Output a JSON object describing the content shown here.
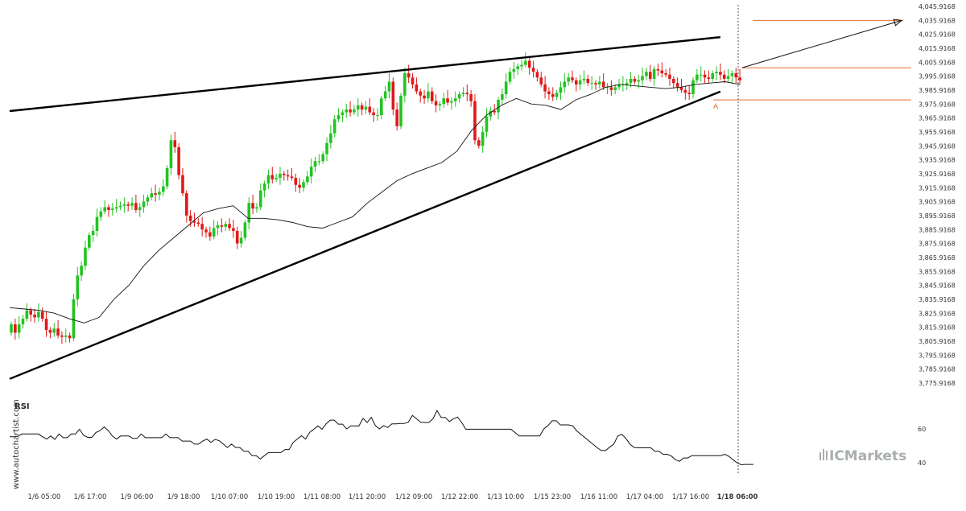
{
  "chart_data": [
    {
      "type": "candlestick",
      "title": "",
      "y_ticks": [
        "4,045.9168",
        "4,035.9168",
        "4,025.9168",
        "4,015.9168",
        "4,005.9168",
        "3,995.9168",
        "3,985.9168",
        "3,975.9168",
        "3,965.9168",
        "3,955.9168",
        "3,945.9168",
        "3,935.9168",
        "3,925.9168",
        "3,915.9168",
        "3,905.9168",
        "3,895.9168",
        "3,885.9168",
        "3,875.9168",
        "3,865.9168",
        "3,855.9168",
        "3,845.9168",
        "3,835.9168",
        "3,825.9168",
        "3,815.9168",
        "3,805.9168",
        "3,795.9168",
        "3,785.9168",
        "3,775.9168"
      ],
      "y_tick_values": [
        4045.9168,
        4035.9168,
        4025.9168,
        4015.9168,
        4005.9168,
        3995.9168,
        3985.9168,
        3975.9168,
        3965.9168,
        3955.9168,
        3945.9168,
        3935.9168,
        3925.9168,
        3915.9168,
        3905.9168,
        3895.9168,
        3885.9168,
        3875.9168,
        3865.9168,
        3855.9168,
        3845.9168,
        3835.9168,
        3825.9168,
        3815.9168,
        3805.9168,
        3795.9168,
        3785.9168,
        3775.9168
      ],
      "ylim": [
        3775.9168,
        4045.9168
      ],
      "x_ticks": [
        "1/6 05:00",
        "1/6 17:00",
        "1/9 06:00",
        "1/9 18:00",
        "1/10 07:00",
        "1/10 19:00",
        "1/11 08:00",
        "1/11 20:00",
        "1/12 09:00",
        "1/12 22:00",
        "1/13 10:00",
        "1/15 23:00",
        "1/16 11:00",
        "1/17 04:00",
        "1/17 16:00",
        "1/18 06:00"
      ],
      "x_tick_bold": "1/18 06:00",
      "up_color": "#22c322",
      "down_color": "#e01818",
      "candles_close": [
        3818,
        3812,
        3818,
        3822,
        3828,
        3825,
        3823,
        3827,
        3822,
        3814,
        3812,
        3815,
        3810,
        3809,
        3810,
        3808,
        3836,
        3853,
        3860,
        3873,
        3882,
        3885,
        3895,
        3899,
        3902,
        3900,
        3901,
        3902,
        3903,
        3904,
        3903,
        3905,
        3900,
        3902,
        3906,
        3909,
        3912,
        3911,
        3913,
        3917,
        3930,
        3950,
        3945,
        3925,
        3912,
        3896,
        3892,
        3891,
        3890,
        3886,
        3884,
        3881,
        3887,
        3889,
        3888,
        3890,
        3887,
        3885,
        3876,
        3880,
        3891,
        3905,
        3901,
        3902,
        3914,
        3919,
        3925,
        3922,
        3923,
        3926,
        3925,
        3924,
        3923,
        3918,
        3916,
        3920,
        3924,
        3931,
        3935,
        3935,
        3940,
        3948,
        3955,
        3965,
        3968,
        3970,
        3972,
        3970,
        3972,
        3975,
        3972,
        3974,
        3970,
        3968,
        3968,
        3980,
        3985,
        3992,
        3972,
        3960,
        3982,
        3998,
        3995,
        3990,
        3985,
        3982,
        3980,
        3985,
        3978,
        3975,
        3976,
        3980,
        3977,
        3978,
        3980,
        3983,
        3984,
        3983,
        3978,
        3950,
        3946,
        3956,
        3967,
        3971,
        3970,
        3979,
        3983,
        3992,
        3999,
        4001,
        4003,
        4004,
        4007,
        4002,
        3999,
        3995,
        3990,
        3985,
        3983,
        3981,
        3984,
        3988,
        3992,
        3995,
        3993,
        3990,
        3993,
        3994,
        3991,
        3991,
        3990,
        3992,
        3988,
        3988,
        3986,
        3988,
        3990,
        3990,
        3991,
        3994,
        3992,
        3993,
        3996,
        3999,
        3994,
        4001,
        4000,
        3998,
        3997,
        3994,
        3991,
        3988,
        3986,
        3984,
        3983,
        3993,
        3997,
        3997,
        3995,
        3994,
        3998,
        3999,
        3997,
        3994,
        3996,
        3998,
        3995,
        3993
      ],
      "ma_values": [
        3830,
        3829,
        3828,
        3826,
        3822,
        3819,
        3823,
        3836,
        3846,
        3860,
        3871,
        3880,
        3889,
        3898,
        3901,
        3903,
        3894,
        3894,
        3893,
        3891,
        3888,
        3887,
        3891,
        3895,
        3905,
        3913,
        3921,
        3926,
        3930,
        3934,
        3942,
        3957,
        3968,
        3975,
        3980,
        3976,
        3975,
        3972,
        3979,
        3983,
        3988,
        3990,
        3989,
        3988,
        3987,
        3988,
        3990,
        3991,
        3992,
        3990
      ],
      "trendlines": [
        {
          "from": [
            0,
            3970.9168
          ],
          "to": [
            182,
            4023.9168
          ]
        },
        {
          "from": [
            0,
            3778.9168
          ],
          "to": [
            182,
            3984.9168
          ]
        }
      ],
      "projection_line": {
        "from": [
          182,
          4002.0
        ],
        "to": [
          204,
          4035.9168
        ]
      },
      "horizontal_levels": [
        4035.9168,
        4001.9168,
        3978.9168
      ],
      "marker_label": "A"
    },
    {
      "type": "line",
      "title": "RSI",
      "y_ticks": [
        "60",
        "40"
      ],
      "y_tick_values": [
        60,
        40
      ],
      "ylim": [
        30,
        70
      ],
      "values": [
        55.4,
        55.4,
        55.6,
        57.0,
        57.0,
        57.0,
        57.0,
        57.0,
        55.4,
        54.0,
        55.8,
        53.8,
        57.0,
        54.8,
        54.8,
        57.0,
        57.0,
        59.8,
        56.2,
        55.0,
        55.0,
        57.9,
        59.0,
        61.2,
        59.0,
        55.8,
        54.0,
        55.8,
        55.8,
        55.8,
        54.4,
        54.4,
        57.0,
        54.8,
        54.8,
        54.8,
        54.8,
        54.8,
        57.0,
        54.8,
        54.8,
        54.8,
        52.8,
        52.8,
        52.8,
        51.0,
        51.0,
        52.8,
        54.0,
        52.0,
        53.8,
        53.0,
        51.0,
        49.0,
        51.0,
        49.0,
        49.0,
        46.8,
        46.8,
        44.2,
        44.2,
        42.2,
        44.2,
        46.0,
        46.0,
        46.0,
        46.0,
        47.8,
        47.8,
        52.0,
        54.0,
        56.0,
        54.0,
        58.0,
        59.8,
        61.8,
        59.8,
        63.0,
        65.2,
        65.2,
        62.8,
        62.8,
        60.0,
        61.8,
        61.8,
        61.8,
        66.2,
        63.8,
        66.8,
        62.0,
        60.0,
        62.0,
        60.8,
        63.0,
        63.0,
        63.2,
        63.2,
        64.0,
        68.0,
        66.0,
        64.0,
        63.8,
        63.8,
        66.0,
        70.8,
        66.8,
        66.8,
        64.4,
        66.0,
        67.0,
        63.8,
        59.8,
        59.8,
        59.8,
        59.8,
        59.8,
        59.8,
        59.8,
        59.8,
        59.8,
        59.8,
        59.8,
        59.8,
        57.8,
        55.8,
        55.8,
        55.8,
        55.8,
        55.8,
        55.8,
        60.0,
        62.0,
        64.8,
        64.8,
        62.4,
        62.4,
        62.4,
        61.8,
        58.8,
        56.8,
        54.8,
        52.8,
        50.8,
        48.8,
        47.2,
        47.2,
        49.2,
        51.0,
        55.8,
        56.8,
        54.2,
        50.8,
        49.0,
        48.8,
        48.8,
        48.8,
        48.8,
        46.8,
        46.8,
        45.0,
        45.0,
        44.0,
        41.8,
        40.8,
        42.8,
        42.8,
        44.2,
        44.2,
        44.2,
        44.2,
        44.2,
        44.2,
        44.2,
        44.2,
        45.0,
        43.8,
        41.8,
        40.0,
        38.8,
        39.0,
        39.0,
        39.0
      ]
    }
  ],
  "watermark": {
    "side_text": "www.autochartist.com",
    "brand": "ICMarkets"
  },
  "colors": {
    "grid_divider": "#555555",
    "orange": "#e06a2c",
    "axis_text": "#333333",
    "brand": "#a9b0ab"
  }
}
